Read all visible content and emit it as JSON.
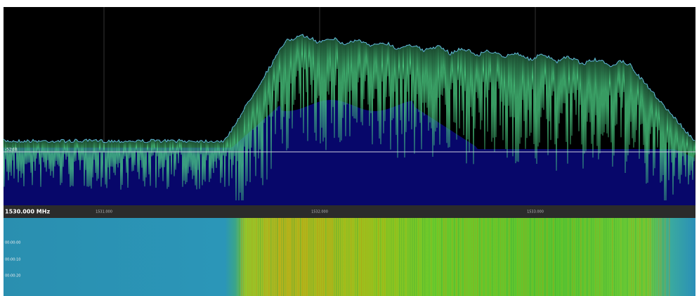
{
  "spectrum": {
    "reference_label": "-52dB"
  },
  "frequency_bar": {
    "center_label": "1530.000 MHz",
    "ticks": [
      "1531.000",
      "1532.000",
      "1533.000"
    ]
  },
  "waterfall": {
    "time_labels": [
      "00:00:00",
      "00:00:10",
      "00:00:20"
    ]
  }
}
